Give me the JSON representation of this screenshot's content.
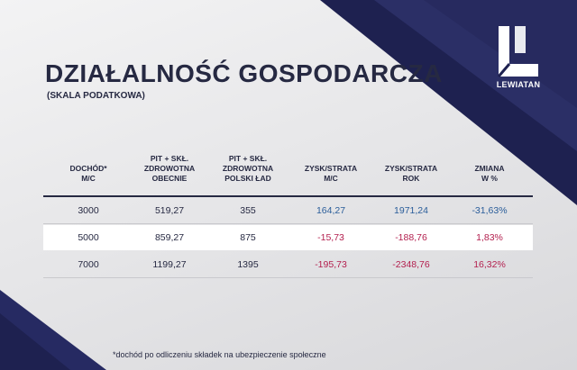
{
  "brand": {
    "name": "LEWIATAN",
    "navy": "#262942",
    "accent_blue": "#2a5d9a",
    "accent_red": "#b31f4e"
  },
  "header": {
    "title": "DZIAŁALNOŚĆ GOSPODARCZA",
    "subtitle": "(SKALA PODATKOWA)"
  },
  "table": {
    "columns": [
      {
        "lines": [
          "DOCHÓD*",
          "M/C"
        ]
      },
      {
        "lines": [
          "PIT + SKŁ.",
          "ZDROWOTNA",
          "OBECNIE"
        ]
      },
      {
        "lines": [
          "PIT + SKŁ.",
          "ZDROWOTNA",
          "POLSKI ŁAD"
        ]
      },
      {
        "lines": [
          "ZYSK/STRATA",
          "M/C"
        ]
      },
      {
        "lines": [
          "ZYSK/STRATA",
          "ROK"
        ]
      },
      {
        "lines": [
          "ZMIANA",
          "W %"
        ]
      }
    ],
    "rows": [
      {
        "cells": [
          "3000",
          "519,27",
          "355",
          "164,27",
          "1971,24",
          "-31,63%"
        ],
        "tones": [
          "n",
          "n",
          "n",
          "pos",
          "pos",
          "pos"
        ]
      },
      {
        "cells": [
          "5000",
          "859,27",
          "875",
          "-15,73",
          "-188,76",
          "1,83%"
        ],
        "tones": [
          "n",
          "n",
          "n",
          "neg",
          "neg",
          "neg"
        ]
      },
      {
        "cells": [
          "7000",
          "1199,27",
          "1395",
          "-195,73",
          "-2348,76",
          "16,32%"
        ],
        "tones": [
          "n",
          "n",
          "n",
          "neg",
          "neg",
          "neg"
        ]
      }
    ]
  },
  "footnote": "*dochód po odliczeniu składek na ubezpieczenie społeczne"
}
